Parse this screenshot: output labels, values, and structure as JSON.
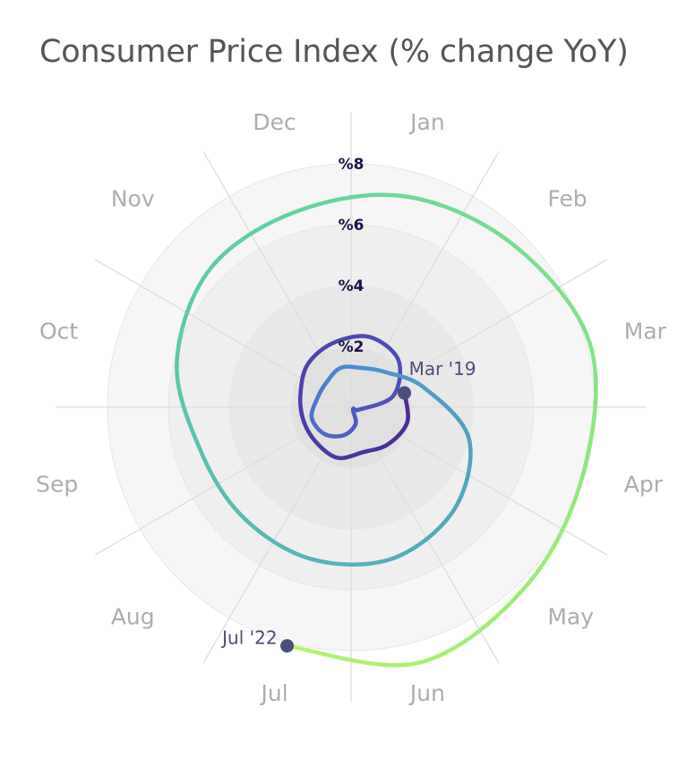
{
  "page": {
    "title": "Consumer Price Index (% change YoY)"
  },
  "chart_data": {
    "type": "line",
    "layout": "radial-spiral",
    "title": "Consumer Price Index (% change YoY)",
    "angular_axis": {
      "labels": [
        "Jan",
        "Feb",
        "Mar",
        "Apr",
        "May",
        "Jun",
        "Jul",
        "Aug",
        "Sep",
        "Oct",
        "Nov",
        "Dec"
      ]
    },
    "radial_axis": {
      "range": [
        0,
        8
      ],
      "ticks": [
        2,
        4,
        6,
        8
      ],
      "tick_labels": [
        "%2",
        "%4",
        "%6",
        "%8"
      ]
    },
    "grid": true,
    "series": [
      {
        "x": [
          "2019-03",
          "2019-04",
          "2019-05",
          "2019-06",
          "2019-07",
          "2019-08",
          "2019-09",
          "2019-10",
          "2019-11",
          "2019-12",
          "2020-01",
          "2020-02",
          "2020-03",
          "2020-04",
          "2020-05",
          "2020-06",
          "2020-07",
          "2020-08",
          "2020-09",
          "2020-10",
          "2020-11",
          "2020-12",
          "2021-01",
          "2021-02",
          "2021-03",
          "2021-04",
          "2021-05",
          "2021-06",
          "2021-07",
          "2021-08",
          "2021-09",
          "2021-10",
          "2021-11",
          "2021-12",
          "2022-01",
          "2022-02",
          "2022-03",
          "2022-04",
          "2022-05",
          "2022-06",
          "2022-07"
        ],
        "values": [
          1.9,
          2.0,
          1.8,
          1.6,
          1.8,
          1.7,
          1.7,
          1.8,
          2.1,
          2.3,
          2.5,
          2.3,
          1.5,
          0.3,
          0.1,
          0.6,
          1.0,
          1.3,
          1.4,
          1.2,
          1.2,
          1.4,
          1.4,
          1.7,
          2.6,
          4.2,
          5.0,
          5.4,
          5.4,
          5.3,
          5.4,
          6.2,
          6.8,
          7.0,
          7.5,
          7.9,
          8.5,
          8.3,
          8.6,
          9.1,
          8.5
        ]
      }
    ],
    "annotations": [
      {
        "label": "Mar '19",
        "x": "2019-03"
      },
      {
        "label": "Jul '22",
        "x": "2022-07"
      }
    ],
    "colors": {
      "start": "#4b2a94",
      "mid": "#4a8fd0",
      "late": "#5fd3a0",
      "end": "#b7f46a",
      "marker": "#4b4f78"
    }
  }
}
